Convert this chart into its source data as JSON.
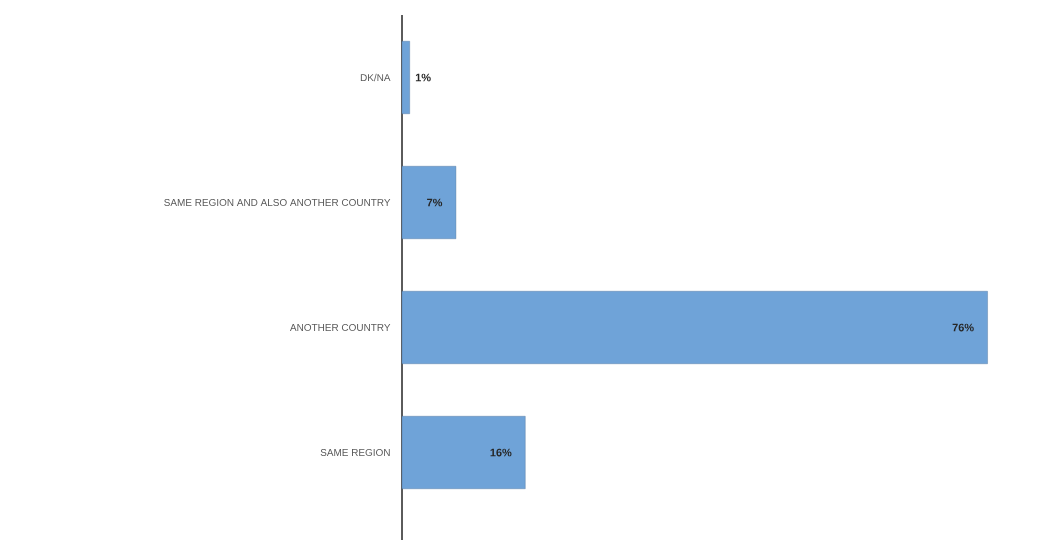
{
  "chart_data": {
    "type": "bar",
    "orientation": "horizontal",
    "categories": [
      "DK/NA",
      "SAME REGION AND ALSO ANOTHER COUNTRY",
      "ANOTHER COUNTRY",
      "SAME REGION"
    ],
    "values": [
      1,
      7,
      76,
      16
    ],
    "value_labels": [
      "1%",
      "7%",
      "76%",
      "16%"
    ],
    "color": "#6fa3d8"
  }
}
